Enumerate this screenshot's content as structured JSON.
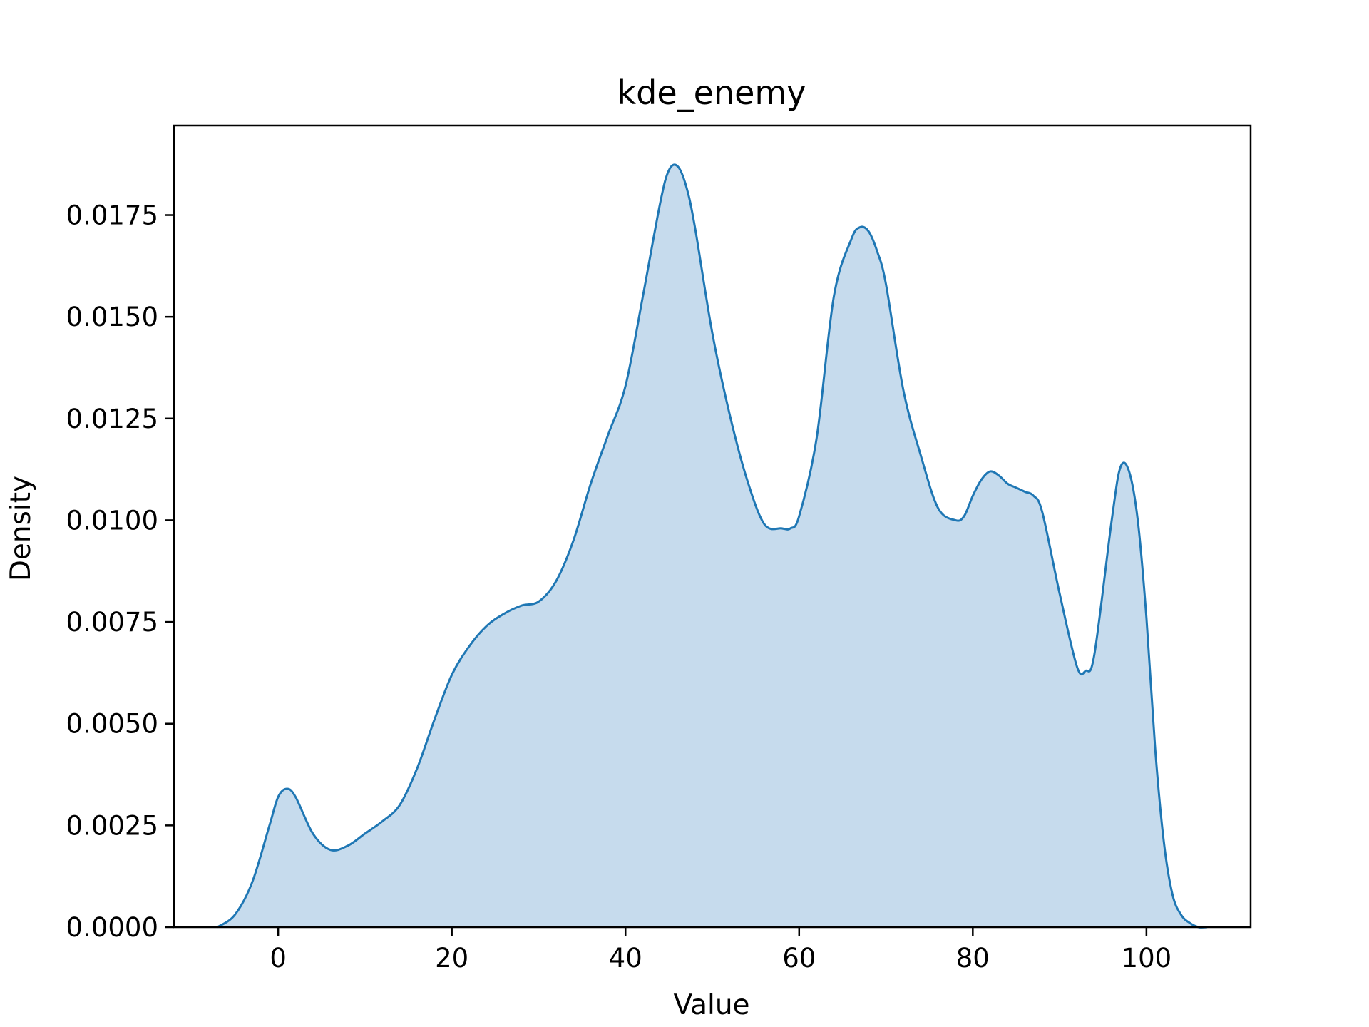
{
  "chart_data": {
    "type": "area",
    "title": "kde_enemy",
    "xlabel": "Value",
    "ylabel": "Density",
    "xlim": [
      -12,
      112
    ],
    "ylim": [
      0,
      0.0197
    ],
    "x_ticks": [
      0,
      20,
      40,
      60,
      80,
      100
    ],
    "x_tick_labels": [
      "0",
      "20",
      "40",
      "60",
      "80",
      "100"
    ],
    "y_ticks": [
      0,
      0.0025,
      0.005,
      0.0075,
      0.01,
      0.0125,
      0.015,
      0.0175
    ],
    "y_tick_labels": [
      "0.0000",
      "0.0025",
      "0.0050",
      "0.0075",
      "0.0100",
      "0.0125",
      "0.0150",
      "0.0175"
    ],
    "grid": false,
    "colors": {
      "line": "#1f77b4",
      "fill": "#c6dbed"
    },
    "series": [
      {
        "x": [
          -7,
          -5,
          -3,
          -1,
          0,
          1,
          2,
          4,
          6,
          8,
          10,
          12,
          14,
          16,
          18,
          20,
          22,
          24,
          26,
          28,
          30,
          32,
          34,
          36,
          38,
          40,
          42,
          44,
          45,
          46,
          47,
          48,
          50,
          52,
          54,
          56,
          58,
          59,
          60,
          62,
          64,
          66,
          67,
          68,
          69,
          70,
          72,
          74,
          76,
          78,
          79,
          80,
          81,
          82,
          83,
          84,
          85,
          86,
          87,
          88,
          90,
          92,
          93,
          94,
          96,
          97,
          98,
          99,
          100,
          101,
          102,
          103,
          104,
          105,
          106,
          107
        ],
        "y": [
          0.0,
          0.0003,
          0.0011,
          0.0025,
          0.0032,
          0.0034,
          0.0032,
          0.0023,
          0.0019,
          0.002,
          0.0023,
          0.0026,
          0.003,
          0.0039,
          0.0051,
          0.0062,
          0.0069,
          0.0074,
          0.0077,
          0.0079,
          0.008,
          0.0085,
          0.0095,
          0.0109,
          0.0121,
          0.0133,
          0.0155,
          0.0178,
          0.0186,
          0.0187,
          0.0182,
          0.0172,
          0.0146,
          0.0126,
          0.011,
          0.0099,
          0.0098,
          0.0098,
          0.0101,
          0.012,
          0.0155,
          0.0169,
          0.0172,
          0.0171,
          0.0166,
          0.0158,
          0.0132,
          0.0116,
          0.0103,
          0.01,
          0.0101,
          0.0106,
          0.011,
          0.0112,
          0.0111,
          0.0109,
          0.0108,
          0.0107,
          0.0106,
          0.0102,
          0.0082,
          0.0064,
          0.0063,
          0.0067,
          0.01,
          0.0113,
          0.0112,
          0.01,
          0.0076,
          0.0044,
          0.0021,
          0.0008,
          0.0003,
          0.0001,
          0.0,
          0.0
        ]
      }
    ]
  }
}
